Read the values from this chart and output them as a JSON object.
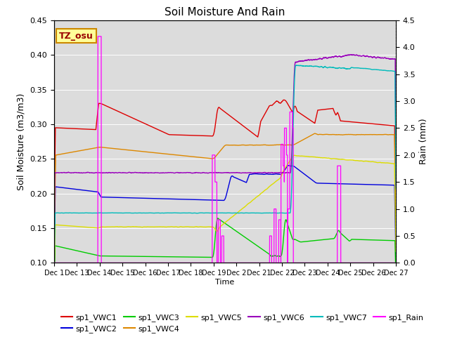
{
  "title": "Soil Moisture And Rain",
  "xlabel": "Time",
  "ylabel_left": "Soil Moisture (m3/m3)",
  "ylabel_right": "Rain (mm)",
  "annotation": "TZ_osu",
  "ylim_left": [
    0.1,
    0.45
  ],
  "ylim_right": [
    0.0,
    4.5
  ],
  "background_color": "#dcdcdc",
  "figsize": [
    6.4,
    4.8
  ],
  "dpi": 100,
  "xtick_labels": [
    "Dec 1",
    "Dec 13",
    "Dec 14",
    "Dec 15",
    "Dec 16",
    "Dec 17",
    "Dec 18",
    "Dec 19",
    "Dec 2",
    "Dec 21",
    "Dec 22",
    "Dec 23",
    "Dec 24",
    "Dec 25",
    "Dec 26",
    "Dec 27"
  ],
  "series_colors": {
    "VWC1": "#dd0000",
    "VWC2": "#0000dd",
    "VWC3": "#00cc00",
    "VWC4": "#dd8800",
    "VWC5": "#dddd00",
    "VWC6": "#9900bb",
    "VWC7": "#00bbbb",
    "Rain": "#ff00ff"
  }
}
